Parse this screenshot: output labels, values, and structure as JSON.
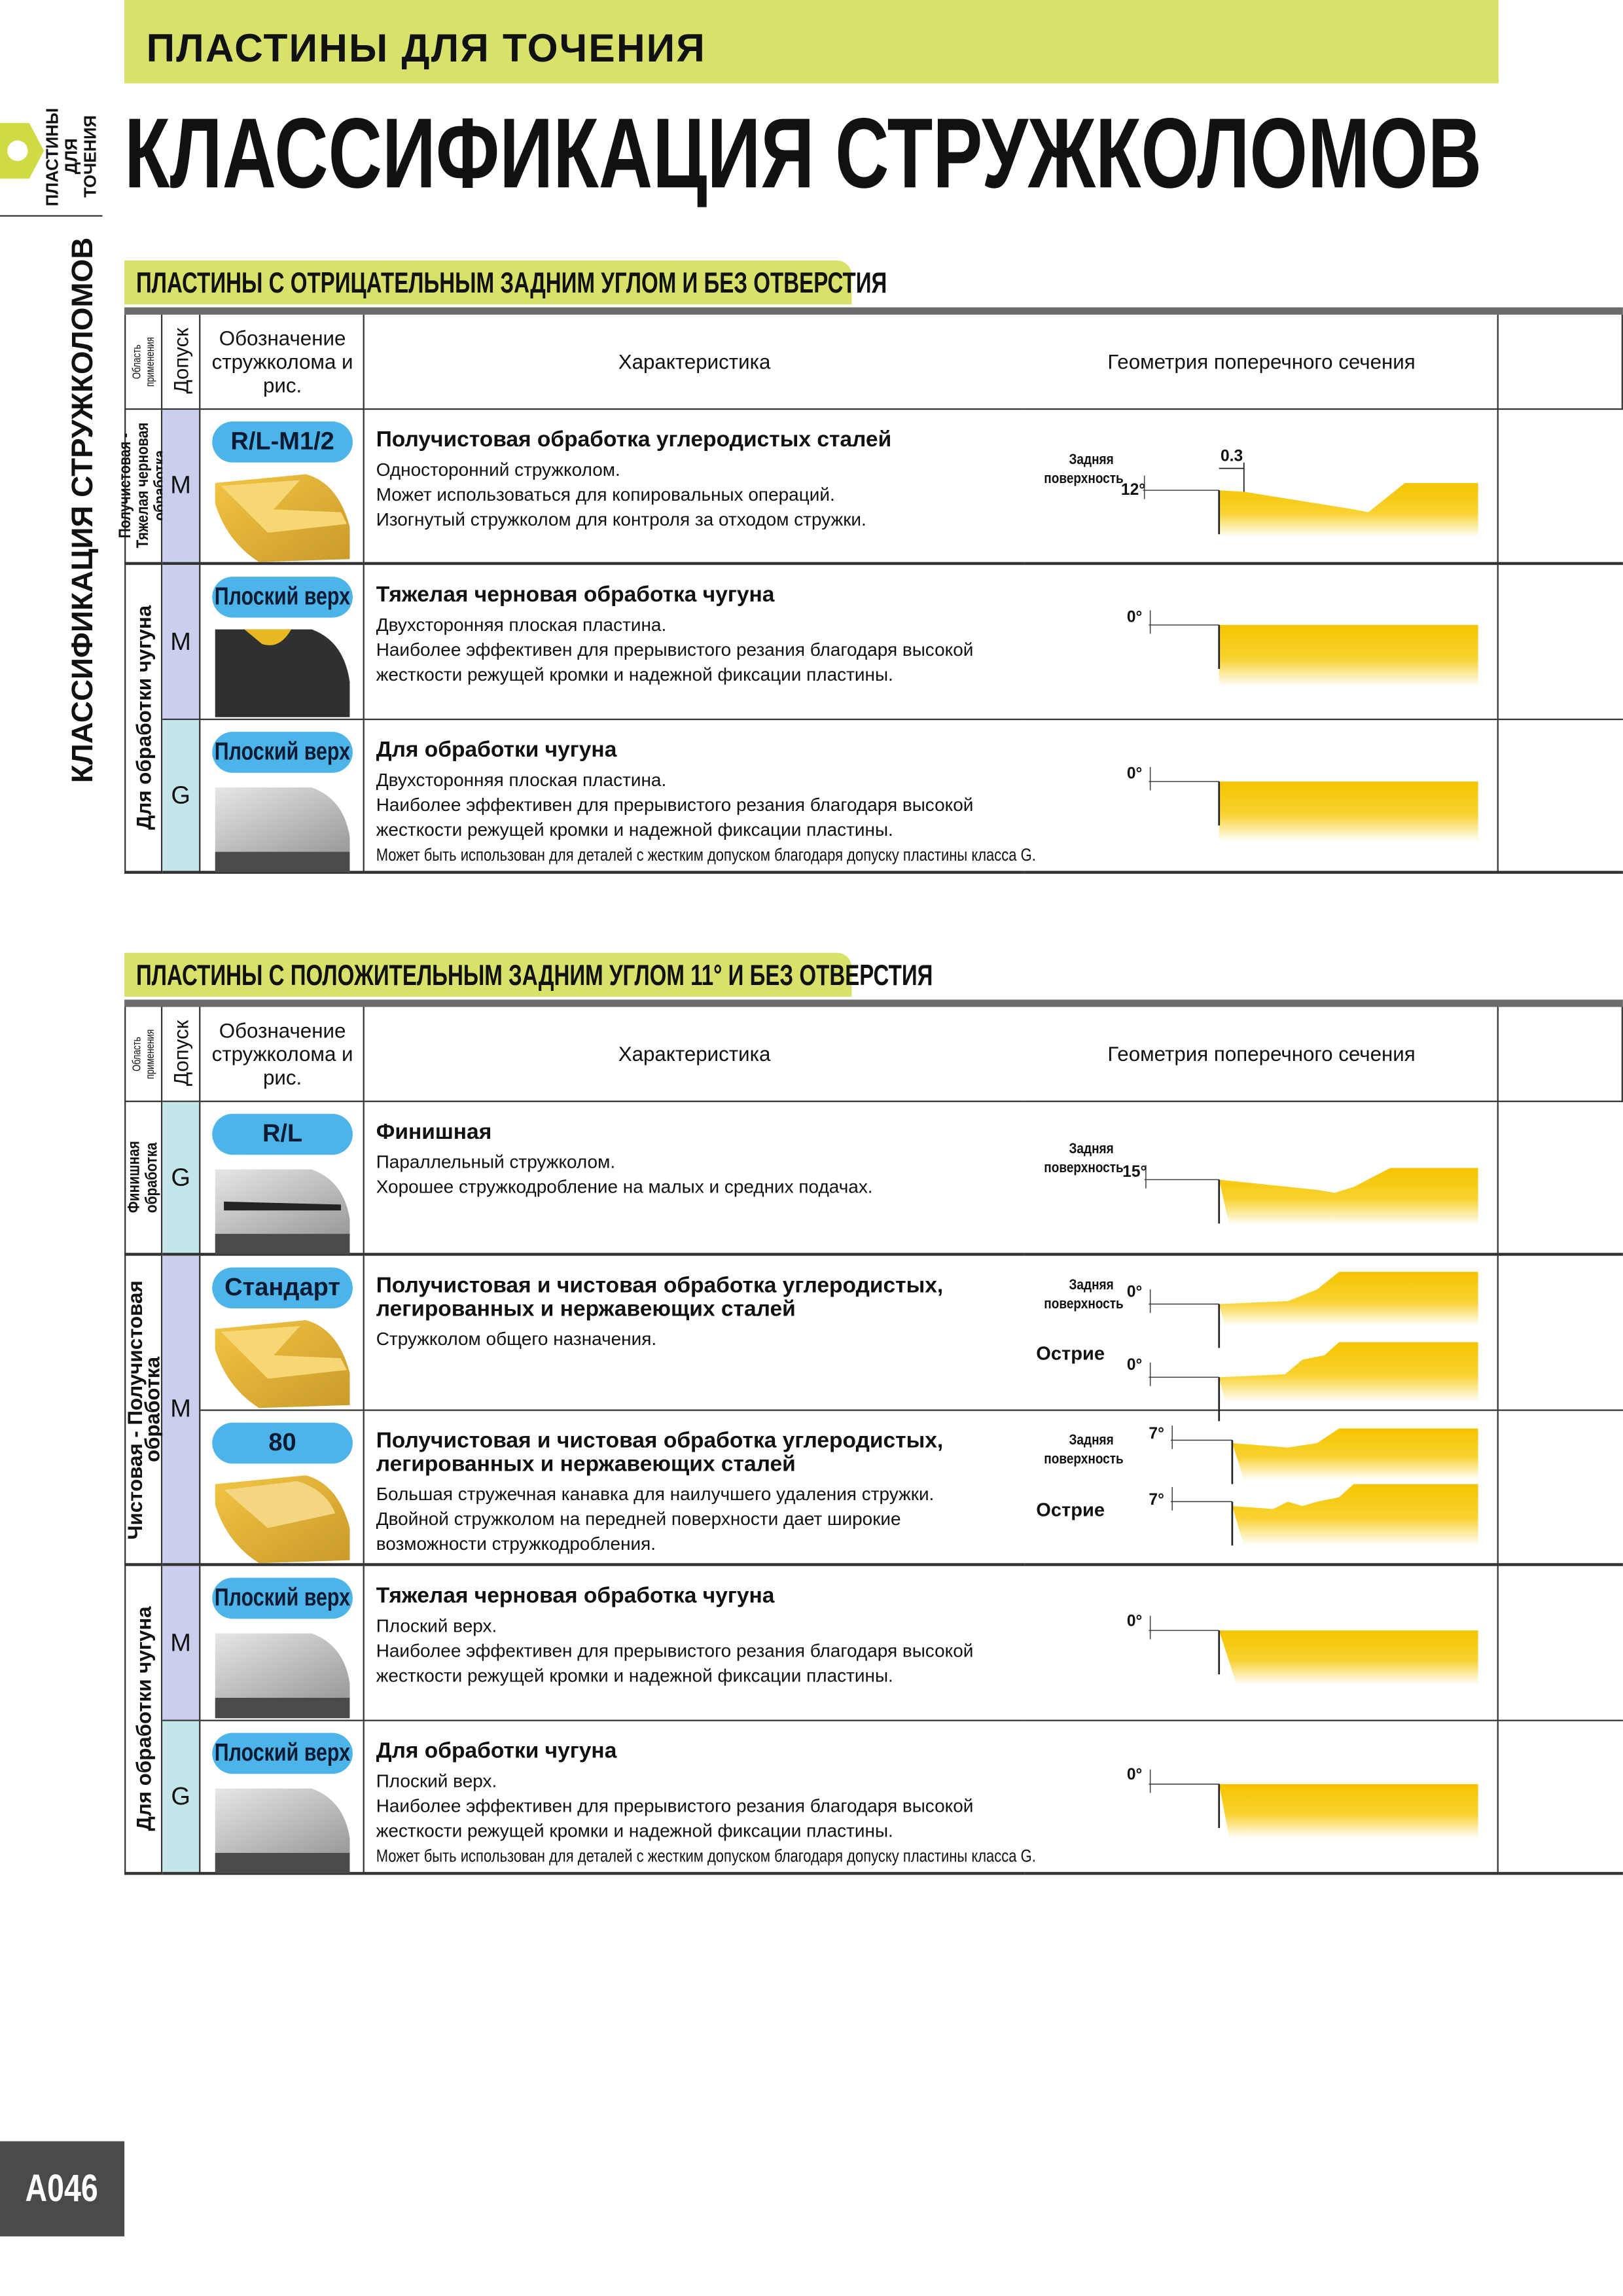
{
  "header": {
    "category": "ПЛАСТИНЫ ДЛЯ ТОЧЕНИЯ",
    "title": "КЛАССИФИКАЦИЯ СТРУЖКОЛОМОВ"
  },
  "side_tab": {
    "label": "ПЛАСТИНЫ ДЛЯ ТОЧЕНИЯ",
    "title": "КЛАССИФИКАЦИЯ СТРУЖКОЛОМОВ"
  },
  "sections": [
    {
      "title": "ПЛАСТИНЫ С ОТРИЦАТЕЛЬНЫМ ЗАДНИМ УГЛОМ И БЕЗ ОТВЕРСТИЯ",
      "columns": [
        "Область применения",
        "Допуск",
        "Обозначение стружколома и рис.",
        "Характеристика",
        "Геометрия поперечного сечения"
      ],
      "groups": [
        {
          "application": "Получистовая - Тяжелая черновая обработка",
          "rows": [
            {
              "tolerance": "M",
              "breaker": "R/L-M1/2",
              "title": [
                "Получистовая обработка углеродистых сталей"
              ],
              "lines": [
                "Односторонний стружколом.",
                "Может использоваться для копировальных операций.",
                "Изогнутый стружколом для контроля за отходом стружки."
              ],
              "geometry": [
                {
                  "face": "Задняя поверхность",
                  "angle": "12°",
                  "land": "0.3"
                }
              ]
            }
          ]
        },
        {
          "application": "Для обработки чугуна",
          "rows": [
            {
              "tolerance": "M",
              "breaker": "Плоский верх",
              "title": [
                "Тяжелая черновая обработка чугуна"
              ],
              "lines": [
                "Двухсторонняя плоская пластина.",
                "Наиболее эффективен для прерывистого резания благодаря высокой",
                "жесткости режущей кромки и надежной фиксации пластины."
              ],
              "geometry": [
                {
                  "angle": "0°"
                }
              ]
            },
            {
              "tolerance": "G",
              "breaker": "Плоский верх",
              "title": [
                "Для обработки чугуна"
              ],
              "lines": [
                "Двухсторонняя плоская пластина.",
                "Наиболее эффективен для прерывистого резания благодаря высокой",
                "жесткости режущей кромки и надежной фиксации пластины."
              ],
              "note": "Может быть использован для деталей с жестким допуском благодаря допуску пластины класса G.",
              "geometry": [
                {
                  "angle": "0°"
                }
              ]
            }
          ]
        }
      ]
    },
    {
      "title": "ПЛАСТИНЫ С ПОЛОЖИТЕЛЬНЫМ ЗАДНИМ УГЛОМ 11° И БЕЗ ОТВЕРСТИЯ",
      "columns": [
        "Область применения",
        "Допуск",
        "Обозначение стружколома и рис.",
        "Характеристика",
        "Геометрия поперечного сечения"
      ],
      "groups": [
        {
          "application": "Финишная обработка",
          "rows": [
            {
              "tolerance": "G",
              "breaker": "R/L",
              "title": [
                "Финишная"
              ],
              "lines": [
                "Параллельный стружколом.",
                "Хорошее стружкодробление на малых и средних подачах."
              ],
              "geometry": [
                {
                  "face": "Задняя поверхность",
                  "angle": "15°"
                }
              ]
            }
          ]
        },
        {
          "application": "Чистовая - Получистовая обработка",
          "tolerance": "M",
          "rows": [
            {
              "breaker": "Стандарт",
              "title": [
                "Получистовая и чистовая обработка углеродистых,",
                "легированных и нержавеющих сталей"
              ],
              "lines": [
                "Стружколом общего назначения."
              ],
              "geometry": [
                {
                  "face": "Задняя поверхность",
                  "angle": "0°"
                },
                {
                  "face": "Острие",
                  "angle": "0°"
                }
              ]
            },
            {
              "breaker": "80",
              "title": [
                "Получистовая и чистовая обработка углеродистых,",
                "легированных и нержавеющих сталей"
              ],
              "lines": [
                "Большая стружечная канавка для наилучшего удаления стружки.",
                "Двойной стружколом на передней поверхности дает широкие",
                "возможности стружкодробления."
              ],
              "geometry": [
                {
                  "face": "Задняя поверхность",
                  "angle": "7°"
                },
                {
                  "face": "Острие",
                  "angle": "7°"
                }
              ]
            }
          ]
        },
        {
          "application": "Для обработки чугуна",
          "rows": [
            {
              "tolerance": "M",
              "breaker": "Плоский верх",
              "title": [
                "Тяжелая черновая обработка чугуна"
              ],
              "lines": [
                "Плоский верх.",
                "Наиболее эффективен для прерывистого резания благодаря высокой",
                "жесткости режущей кромки и надежной фиксации пластины."
              ],
              "geometry": [
                {
                  "angle": "0°"
                }
              ]
            },
            {
              "tolerance": "G",
              "breaker": "Плоский верх",
              "title": [
                "Для обработки чугуна"
              ],
              "lines": [
                "Плоский верх.",
                "Наиболее эффективен для прерывистого резания благодаря высокой",
                "жесткости режущей кромки и надежной фиксации пластины."
              ],
              "note": "Может быть использован для деталей с жестким допуском благодаря допуску пластины класса G.",
              "geometry": [
                {
                  "angle": "0°"
                }
              ]
            }
          ]
        }
      ]
    }
  ],
  "page_number": "A046"
}
